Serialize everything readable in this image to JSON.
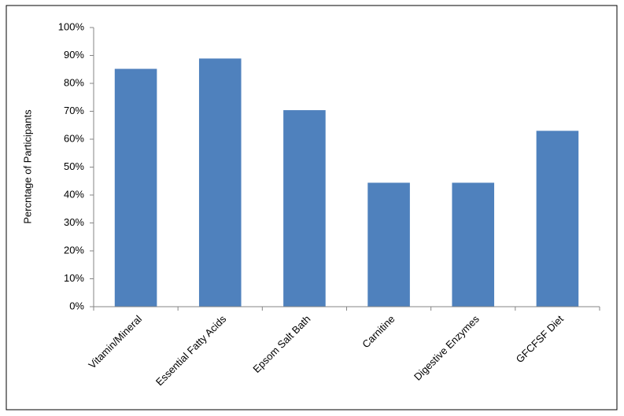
{
  "chart_data": {
    "type": "bar",
    "y_label": "Percntage of Participants",
    "categories": [
      "Vitamin/Mineral",
      "Essential Fatty Acids",
      "Epsom Salt Bath",
      "Carnitine",
      "Digestive Enzymes",
      "GFCFSF Diet"
    ],
    "values": [
      85.2,
      88.9,
      70.4,
      44.4,
      44.4,
      63
    ],
    "color": "#4f81bd",
    "ylim": [
      0,
      100
    ],
    "yticks": [
      {
        "value": 0,
        "label": "0%"
      },
      {
        "value": 10,
        "label": "10%"
      },
      {
        "value": 20,
        "label": "20%"
      },
      {
        "value": 30,
        "label": "30%"
      },
      {
        "value": 40,
        "label": "40%"
      },
      {
        "value": 50,
        "label": "50%"
      },
      {
        "value": 60,
        "label": "60%"
      },
      {
        "value": 70,
        "label": "70%"
      },
      {
        "value": 80,
        "label": "80%"
      },
      {
        "value": 90,
        "label": "90%"
      },
      {
        "value": 100,
        "label": "100%"
      }
    ],
    "grid": false
  }
}
